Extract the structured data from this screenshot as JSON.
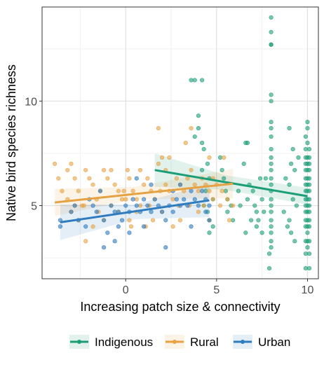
{
  "chart_data": {
    "type": "scatter",
    "title": "",
    "xlabel": "Increasing patch size & connectivity",
    "ylabel": "Native bird species richness",
    "xlim": [
      -4.6,
      10.6
    ],
    "ylim": [
      1.5,
      14.5
    ],
    "x_ticks": [
      0,
      5,
      10
    ],
    "y_ticks": [
      5,
      10
    ],
    "x_tick_labels": [
      "0",
      "5",
      "10"
    ],
    "y_tick_labels": [
      "5",
      "10"
    ],
    "grid": true,
    "legend_position": "bottom",
    "series": [
      {
        "name": "Indigenous",
        "color": "#1b9e77",
        "points": [
          [
            8,
            14
          ],
          [
            8,
            13.3
          ],
          [
            8,
            12.7
          ],
          [
            8,
            12.7
          ],
          [
            8,
            10.3
          ],
          [
            8,
            10
          ],
          [
            8,
            9
          ],
          [
            8,
            8.7
          ],
          [
            8,
            8.3
          ],
          [
            8,
            7.7
          ],
          [
            8,
            7.3
          ],
          [
            8,
            7
          ],
          [
            8,
            6.7
          ],
          [
            8,
            6.3
          ],
          [
            8,
            6
          ],
          [
            8,
            5.7
          ],
          [
            8,
            5.3
          ],
          [
            8,
            5
          ],
          [
            8,
            4.7
          ],
          [
            8,
            4.3
          ],
          [
            8,
            4
          ],
          [
            8,
            3.7
          ],
          [
            8,
            3.3
          ],
          [
            8,
            3
          ],
          [
            7.9,
            2.7
          ],
          [
            7.9,
            2
          ],
          [
            10,
            9
          ],
          [
            10,
            8.7
          ],
          [
            9.9,
            8.3
          ],
          [
            10,
            8
          ],
          [
            9.9,
            7.7
          ],
          [
            10.1,
            7.7
          ],
          [
            9.9,
            7.3
          ],
          [
            10,
            7.3
          ],
          [
            10.1,
            7.3
          ],
          [
            9.9,
            7
          ],
          [
            10,
            7
          ],
          [
            10.1,
            7
          ],
          [
            9.9,
            6.7
          ],
          [
            10,
            6.7
          ],
          [
            10.1,
            6.7
          ],
          [
            9.9,
            6.3
          ],
          [
            10,
            6.3
          ],
          [
            10.1,
            6.3
          ],
          [
            9.9,
            6
          ],
          [
            10,
            6
          ],
          [
            10.1,
            6
          ],
          [
            9.9,
            5.7
          ],
          [
            10,
            5.7
          ],
          [
            10.1,
            5.7
          ],
          [
            9.9,
            5.3
          ],
          [
            10,
            5.3
          ],
          [
            10.1,
            5.3
          ],
          [
            9.9,
            5
          ],
          [
            10,
            5
          ],
          [
            10.1,
            5
          ],
          [
            9.9,
            4.7
          ],
          [
            10,
            4.7
          ],
          [
            10.1,
            4.7
          ],
          [
            9.9,
            4.3
          ],
          [
            10,
            4.3
          ],
          [
            10.1,
            4.3
          ],
          [
            9.9,
            4
          ],
          [
            10,
            4
          ],
          [
            10.1,
            4
          ],
          [
            10,
            3.7
          ],
          [
            9.9,
            3.3
          ],
          [
            10,
            3.3
          ],
          [
            10.1,
            3.3
          ],
          [
            10,
            3
          ],
          [
            9.9,
            2.7
          ],
          [
            10.1,
            2.7
          ],
          [
            9.9,
            2
          ],
          [
            10.1,
            2
          ],
          [
            4,
            9.3
          ],
          [
            4,
            8.7
          ],
          [
            4.2,
            8
          ],
          [
            4.3,
            7.7
          ],
          [
            3.8,
            8.3
          ],
          [
            4.5,
            7
          ],
          [
            4.2,
            6.7
          ],
          [
            4.6,
            6.3
          ],
          [
            4.4,
            5.7
          ],
          [
            4.8,
            5.3
          ],
          [
            4.3,
            5
          ],
          [
            4.6,
            4.3
          ],
          [
            4.5,
            4.7
          ],
          [
            4.8,
            4
          ],
          [
            4.6,
            3.7
          ],
          [
            3.6,
            11
          ],
          [
            3.8,
            11
          ],
          [
            4.2,
            11
          ],
          [
            5.2,
            7.3
          ],
          [
            5.3,
            6.7
          ],
          [
            5.4,
            6.3
          ],
          [
            5.5,
            5.7
          ],
          [
            5.6,
            5.3
          ],
          [
            5.8,
            5
          ],
          [
            5.6,
            4.7
          ],
          [
            5.9,
            4.3
          ],
          [
            6.5,
            7
          ],
          [
            6.8,
            6
          ],
          [
            7,
            5.7
          ],
          [
            6.7,
            5.3
          ],
          [
            7.1,
            5
          ],
          [
            7.2,
            4.7
          ],
          [
            6.9,
            4.3
          ],
          [
            7.2,
            4
          ],
          [
            6.6,
            3.7
          ],
          [
            6.2,
            5.7
          ],
          [
            6.3,
            5
          ],
          [
            6.6,
            8
          ],
          [
            6.7,
            8
          ],
          [
            7.4,
            6.3
          ],
          [
            7.5,
            5.3
          ],
          [
            7.6,
            4.7
          ],
          [
            7.3,
            4.3
          ],
          [
            7.5,
            3.7
          ],
          [
            7.7,
            6.3
          ],
          [
            9,
            8.7
          ],
          [
            9.2,
            7.7
          ],
          [
            9.1,
            7
          ],
          [
            9.3,
            6.7
          ],
          [
            8.8,
            6.3
          ],
          [
            9,
            6
          ],
          [
            9.2,
            5.3
          ],
          [
            9.4,
            5
          ],
          [
            8.7,
            4.7
          ],
          [
            9,
            4.3
          ],
          [
            9.1,
            3.7
          ],
          [
            9.3,
            3.3
          ],
          [
            8.9,
            4
          ],
          [
            9.5,
            7.3
          ]
        ]
      },
      {
        "name": "Rural",
        "color": "#e6a142",
        "points": [
          [
            -3.9,
            7
          ],
          [
            -3.7,
            6.3
          ],
          [
            -3.5,
            5.7
          ],
          [
            -3.2,
            6.7
          ],
          [
            -3,
            7
          ],
          [
            -2.8,
            6.3
          ],
          [
            -2.6,
            5.7
          ],
          [
            -2.4,
            5
          ],
          [
            -2.2,
            6.7
          ],
          [
            -2,
            6.3
          ],
          [
            -1.8,
            6
          ],
          [
            -1.6,
            5.3
          ],
          [
            -1.4,
            5.7
          ],
          [
            -1.2,
            6.7
          ],
          [
            -1,
            6.3
          ],
          [
            -0.8,
            6.7
          ],
          [
            -0.6,
            6
          ],
          [
            -0.4,
            5.7
          ],
          [
            -0.2,
            5.3
          ],
          [
            0,
            5.3
          ],
          [
            0.1,
            6.7
          ],
          [
            0.2,
            6.3
          ],
          [
            0.4,
            5.7
          ],
          [
            0.6,
            5.3
          ],
          [
            0.8,
            5
          ],
          [
            1,
            6
          ],
          [
            1.2,
            6.3
          ],
          [
            1.4,
            5.7
          ],
          [
            1.6,
            5.3
          ],
          [
            1.8,
            7
          ],
          [
            2,
            7.3
          ],
          [
            2.2,
            6
          ],
          [
            2.4,
            5.7
          ],
          [
            2.6,
            5.3
          ],
          [
            2.8,
            6.3
          ],
          [
            3,
            6
          ],
          [
            3.2,
            5.7
          ],
          [
            3.4,
            6.3
          ],
          [
            3.6,
            6.7
          ],
          [
            3.8,
            6
          ],
          [
            4,
            5.7
          ],
          [
            4.2,
            6.3
          ],
          [
            4.4,
            6
          ],
          [
            4.6,
            5.7
          ],
          [
            4.8,
            6.3
          ],
          [
            5,
            6
          ],
          [
            5.3,
            5.7
          ],
          [
            5.6,
            5.3
          ],
          [
            5.9,
            5
          ],
          [
            1.8,
            8.7
          ],
          [
            2.4,
            7.3
          ],
          [
            3.6,
            8.7
          ],
          [
            4.6,
            7.3
          ],
          [
            5.4,
            7.3
          ],
          [
            -3,
            4.7
          ],
          [
            -2.6,
            4.3
          ],
          [
            -2.2,
            3.3
          ],
          [
            -1.8,
            4
          ],
          [
            -1.2,
            4.3
          ],
          [
            -0.8,
            5
          ],
          [
            -0.4,
            4.7
          ],
          [
            0.2,
            4.3
          ],
          [
            0.6,
            4.7
          ],
          [
            1.1,
            4
          ],
          [
            1.5,
            4.3
          ],
          [
            2,
            4.7
          ],
          [
            2.6,
            4
          ],
          [
            3,
            4.3
          ],
          [
            3.5,
            5
          ],
          [
            4,
            4.7
          ],
          [
            4.6,
            4.3
          ],
          [
            5.2,
            5
          ],
          [
            4.8,
            5.3
          ],
          [
            5.7,
            4.3
          ],
          [
            3.3,
            8
          ],
          [
            2.2,
            6.7
          ],
          [
            -3.2,
            5.3
          ],
          [
            -2.3,
            5
          ],
          [
            0.8,
            6.7
          ],
          [
            1.3,
            5
          ],
          [
            2.9,
            5
          ],
          [
            -1.5,
            4.7
          ],
          [
            -2.8,
            5
          ],
          [
            0.3,
            4
          ],
          [
            1.9,
            5.7
          ],
          [
            -0.1,
            5.7
          ],
          [
            4.3,
            5
          ]
        ]
      },
      {
        "name": "Urban",
        "color": "#2f7bbf",
        "points": [
          [
            -3.6,
            4.3
          ],
          [
            -3.6,
            4
          ],
          [
            -3,
            4.7
          ],
          [
            -2.8,
            5
          ],
          [
            -2.6,
            4.3
          ],
          [
            -2.2,
            4
          ],
          [
            -1.8,
            5
          ],
          [
            -1.6,
            4.7
          ],
          [
            -1.2,
            4.3
          ],
          [
            -1,
            3.7
          ],
          [
            -0.8,
            5
          ],
          [
            -0.6,
            4.7
          ],
          [
            -0.4,
            4
          ],
          [
            -0.2,
            4.3
          ],
          [
            0,
            5
          ],
          [
            0.2,
            4.7
          ],
          [
            0.4,
            5.3
          ],
          [
            0.6,
            5
          ],
          [
            0.8,
            4.7
          ],
          [
            1,
            5.3
          ],
          [
            1.2,
            5
          ],
          [
            1.4,
            4.7
          ],
          [
            1.6,
            5.3
          ],
          [
            1.8,
            5
          ],
          [
            2,
            4.7
          ],
          [
            2.2,
            4.3
          ],
          [
            2.4,
            5
          ],
          [
            2.6,
            4.7
          ],
          [
            2.8,
            5.3
          ],
          [
            3,
            5
          ],
          [
            3.2,
            5.3
          ],
          [
            3.4,
            5
          ],
          [
            3.6,
            5.7
          ],
          [
            3.8,
            5.3
          ],
          [
            4,
            5
          ],
          [
            4.2,
            5.7
          ],
          [
            4.4,
            5.3
          ],
          [
            4.6,
            5
          ],
          [
            -1.2,
            3
          ],
          [
            -0.6,
            3.3
          ],
          [
            0.2,
            3.7
          ],
          [
            1,
            4
          ],
          [
            2.2,
            3
          ],
          [
            3.6,
            4
          ],
          [
            4.4,
            4.7
          ],
          [
            4.6,
            4.3
          ],
          [
            -2,
            5.3
          ],
          [
            -1.4,
            5.7
          ],
          [
            0.6,
            6.3
          ],
          [
            1.4,
            6
          ],
          [
            2.6,
            5.7
          ],
          [
            -0.4,
            4.7
          ],
          [
            3,
            6
          ]
        ]
      }
    ],
    "trend_lines": [
      {
        "name": "Indigenous",
        "x": [
          1.6,
          10
        ],
        "y": [
          6.7,
          5.45
        ],
        "ci_band": [
          [
            1.6,
            5.9,
            7.5
          ],
          [
            5.5,
            5.75,
            6.45
          ],
          [
            10,
            5.05,
            5.85
          ]
        ]
      },
      {
        "name": "Rural",
        "x": [
          -3.9,
          5.9
        ],
        "y": [
          5.15,
          6.05
        ],
        "ci_band": [
          [
            -3.9,
            4.5,
            5.8
          ],
          [
            0.5,
            5.3,
            5.9
          ],
          [
            5.9,
            5.35,
            6.75
          ]
        ]
      },
      {
        "name": "Urban",
        "x": [
          -3.6,
          4.6
        ],
        "y": [
          4.2,
          5.25
        ],
        "ci_band": [
          [
            -3.6,
            3.35,
            5.05
          ],
          [
            0.5,
            4.35,
            5.05
          ],
          [
            4.6,
            4.45,
            6.05
          ]
        ]
      }
    ]
  }
}
